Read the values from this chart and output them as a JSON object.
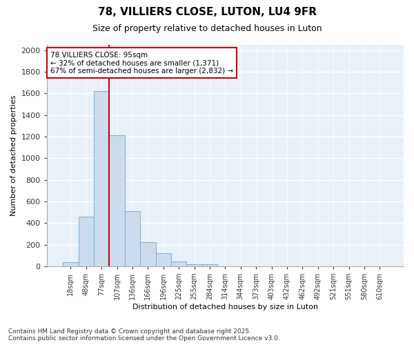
{
  "title": "78, VILLIERS CLOSE, LUTON, LU4 9FR",
  "subtitle": "Size of property relative to detached houses in Luton",
  "xlabel": "Distribution of detached houses by size in Luton",
  "ylabel": "Number of detached properties",
  "bar_color": "#ccdcee",
  "bar_edge_color": "#7bafd4",
  "background_color": "#e8f0f8",
  "grid_color": "#ffffff",
  "categories": [
    "18sqm",
    "48sqm",
    "77sqm",
    "107sqm",
    "136sqm",
    "166sqm",
    "196sqm",
    "225sqm",
    "255sqm",
    "284sqm",
    "314sqm",
    "344sqm",
    "373sqm",
    "403sqm",
    "432sqm",
    "462sqm",
    "492sqm",
    "521sqm",
    "551sqm",
    "580sqm",
    "610sqm"
  ],
  "values": [
    35,
    460,
    1620,
    1210,
    510,
    220,
    120,
    45,
    20,
    20,
    0,
    0,
    0,
    0,
    0,
    0,
    0,
    0,
    0,
    0,
    0
  ],
  "ylim": [
    0,
    2050
  ],
  "yticks": [
    0,
    200,
    400,
    600,
    800,
    1000,
    1200,
    1400,
    1600,
    1800,
    2000
  ],
  "property_line_x": 2.5,
  "annotation_text": "78 VILLIERS CLOSE: 95sqm\n← 32% of detached houses are smaller (1,371)\n67% of semi-detached houses are larger (2,832) →",
  "annotation_box_color": "#ffffff",
  "annotation_box_edge": "#cc0000",
  "property_line_color": "#cc0000",
  "footer_line1": "Contains HM Land Registry data © Crown copyright and database right 2025.",
  "footer_line2": "Contains public sector information licensed under the Open Government Licence v3.0."
}
